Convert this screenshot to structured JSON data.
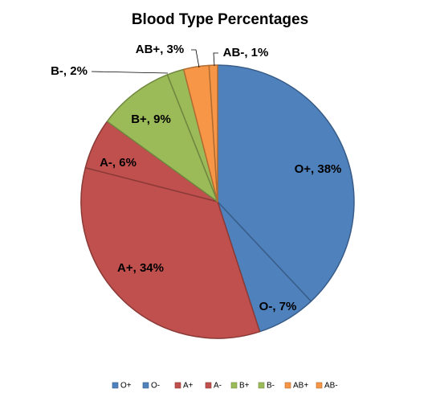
{
  "chart_data": {
    "type": "pie",
    "title": "Blood Type Percentages",
    "categories": [
      "O+",
      "O-",
      "A+",
      "A-",
      "B+",
      "B-",
      "AB+",
      "AB-"
    ],
    "values": [
      38,
      7,
      34,
      6,
      9,
      2,
      3,
      1
    ],
    "data_labels": [
      "O+, 38%",
      "O-, 7%",
      "A+, 34%",
      "A-, 6%",
      "B+, 9%",
      "B-, 2%",
      "AB+, 3%",
      "AB-, 1%"
    ],
    "colors": [
      "#4F81BD",
      "#4F81BD",
      "#C0504D",
      "#C0504D",
      "#9BBB59",
      "#9BBB59",
      "#F79646",
      "#F79646"
    ],
    "legend_position": "bottom"
  }
}
